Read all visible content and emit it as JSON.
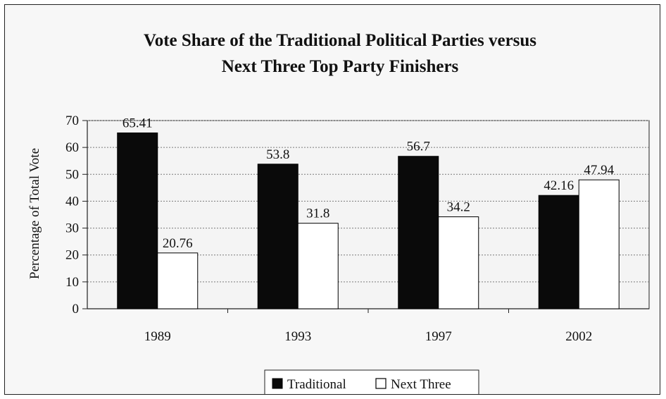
{
  "chart_data": {
    "type": "bar",
    "title": "Vote Share of the Traditional Political Parties versus Next Three Top Party Finishers",
    "title_lines": [
      "Vote Share of the Traditional Political Parties versus",
      "Next Three Top Party Finishers"
    ],
    "xlabel": "",
    "ylabel": "Percentage of Total Vote",
    "ylim": [
      0,
      70
    ],
    "yticks": [
      "0",
      "10",
      "20",
      "30",
      "40",
      "50",
      "60",
      "70"
    ],
    "categories": [
      "1989",
      "1993",
      "1997",
      "2002"
    ],
    "series": [
      {
        "name": "Traditional",
        "color": "#0a0a0a",
        "values": [
          65.41,
          53.8,
          56.7,
          42.16
        ],
        "labels": [
          "65.41",
          "53.8",
          "56.7",
          "42.16"
        ]
      },
      {
        "name": "Next Three",
        "color": "#ffffff",
        "values": [
          20.76,
          31.8,
          34.2,
          47.94
        ],
        "labels": [
          "20.76",
          "31.8",
          "34.2",
          "47.94"
        ]
      }
    ],
    "grid": true,
    "legend_position": "bottom"
  }
}
